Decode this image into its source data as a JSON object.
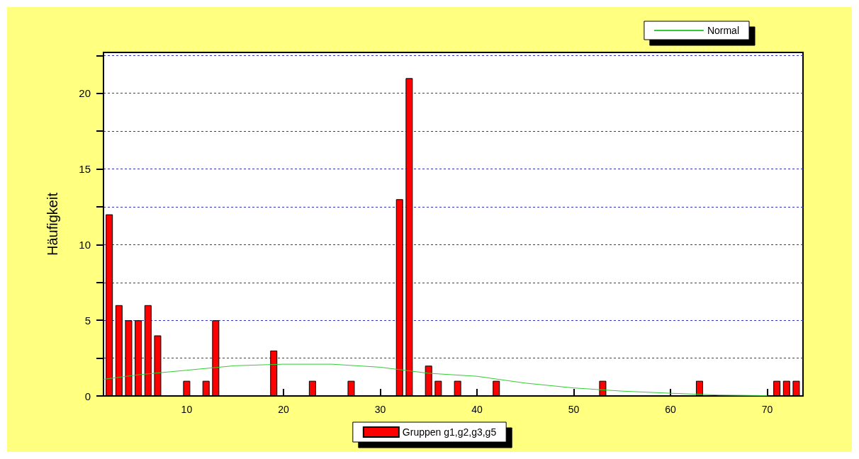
{
  "chart_data": {
    "type": "bar",
    "ylabel": "Häufigkeit",
    "series": [
      {
        "name": "Gruppen g1,g2,g3,g5",
        "color": "#ff0000",
        "x": [
          2,
          3,
          4,
          5,
          6,
          7,
          10,
          12,
          13,
          19,
          23,
          27,
          32,
          33,
          35,
          36,
          38,
          42,
          53,
          63,
          71,
          72,
          73
        ],
        "values": [
          12,
          6,
          5,
          5,
          6,
          4,
          1,
          1,
          5,
          3,
          1,
          1,
          13,
          21,
          2,
          1,
          1,
          1,
          1,
          1,
          1,
          1,
          1
        ]
      },
      {
        "name": "Normal",
        "type": "line",
        "color": "#33cc33",
        "x": [
          1.4,
          5,
          10,
          15,
          20,
          25,
          30,
          35,
          40,
          45,
          50,
          55,
          60,
          65,
          70
        ],
        "values": [
          1.1,
          1.4,
          1.7,
          2.0,
          2.1,
          2.1,
          1.9,
          1.5,
          1.3,
          0.85,
          0.53,
          0.32,
          0.18,
          0.06,
          0.02
        ]
      }
    ],
    "xlim": [
      1.4,
      73.7
    ],
    "xticks": [
      10,
      20,
      30,
      40,
      50,
      60,
      70
    ],
    "ylim": [
      0,
      22.7
    ],
    "yticks": [
      0,
      {
        "value": 2.5,
        "label": null
      },
      5,
      {
        "value": 7.5,
        "label": null
      },
      10,
      {
        "value": 12.5,
        "label": null
      },
      15,
      {
        "value": 17.5,
        "label": null
      },
      20,
      {
        "value": 22.5,
        "label": null
      }
    ],
    "grid": "y",
    "legend": "bottom",
    "marker": "none",
    "line_style": "solid"
  }
}
